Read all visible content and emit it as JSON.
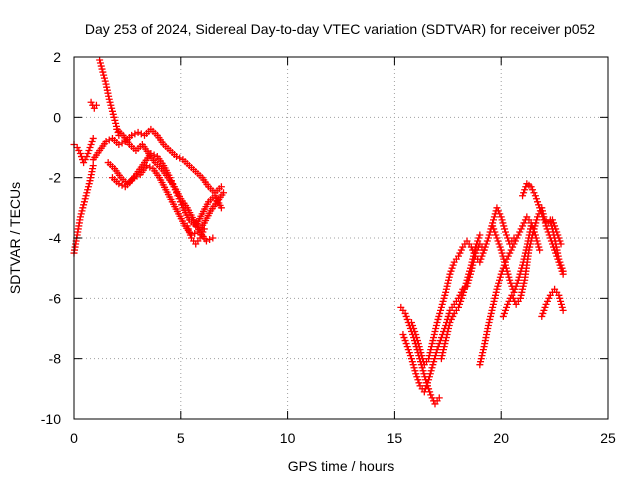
{
  "chart_data": {
    "type": "scatter",
    "title": "Day 253 of 2024, Sidereal Day-to-day VTEC variation (SDTVAR) for receiver p052",
    "xlabel": "GPS time / hours",
    "ylabel": "SDTVAR / TECUs",
    "xlim": [
      0,
      25
    ],
    "ylim": [
      -10,
      2
    ],
    "xticks": [
      0,
      5,
      10,
      15,
      20,
      25
    ],
    "yticks": [
      -10,
      -8,
      -6,
      -4,
      -2,
      0,
      2
    ],
    "grid": true,
    "marker": "+",
    "series": [
      {
        "color": "#ff0000",
        "segments": [
          [
            [
              0.0,
              -4.5
            ],
            [
              0.15,
              -3.9
            ],
            [
              0.3,
              -3.3
            ],
            [
              0.45,
              -2.9
            ],
            [
              0.6,
              -2.5
            ],
            [
              0.75,
              -2.1
            ],
            [
              0.9,
              -1.6
            ]
          ],
          [
            [
              0.0,
              -0.9
            ],
            [
              0.15,
              -1.0
            ],
            [
              0.3,
              -1.2
            ],
            [
              0.45,
              -1.5
            ],
            [
              0.6,
              -1.3
            ],
            [
              0.75,
              -1.0
            ],
            [
              0.9,
              -0.7
            ]
          ],
          [
            [
              0.8,
              0.5
            ],
            [
              0.95,
              0.3
            ],
            [
              1.05,
              0.4
            ]
          ],
          [
            [
              1.2,
              1.9
            ],
            [
              1.35,
              1.5
            ],
            [
              1.5,
              1.1
            ],
            [
              1.65,
              0.6
            ],
            [
              1.8,
              0.2
            ],
            [
              1.95,
              -0.2
            ],
            [
              2.1,
              -0.6
            ]
          ],
          [
            [
              0.9,
              -1.4
            ],
            [
              1.2,
              -1.1
            ],
            [
              1.5,
              -0.8
            ],
            [
              1.8,
              -0.7
            ],
            [
              2.1,
              -0.9
            ],
            [
              2.4,
              -0.8
            ],
            [
              2.7,
              -0.6
            ],
            [
              3.0,
              -0.5
            ],
            [
              3.3,
              -0.6
            ],
            [
              3.6,
              -0.4
            ],
            [
              3.9,
              -0.6
            ],
            [
              4.2,
              -0.9
            ],
            [
              4.5,
              -1.1
            ],
            [
              4.8,
              -1.3
            ],
            [
              5.1,
              -1.4
            ],
            [
              5.4,
              -1.6
            ],
            [
              5.7,
              -1.8
            ],
            [
              6.0,
              -2.0
            ],
            [
              6.3,
              -2.3
            ],
            [
              6.6,
              -2.5
            ],
            [
              6.9,
              -2.3
            ]
          ],
          [
            [
              1.6,
              -1.5
            ],
            [
              1.9,
              -1.7
            ],
            [
              2.2,
              -2.0
            ],
            [
              2.5,
              -2.2
            ],
            [
              2.8,
              -2.0
            ],
            [
              3.1,
              -1.9
            ],
            [
              3.4,
              -1.6
            ],
            [
              3.7,
              -1.7
            ],
            [
              4.0,
              -2.0
            ],
            [
              4.3,
              -2.4
            ],
            [
              4.6,
              -2.8
            ],
            [
              4.9,
              -3.2
            ],
            [
              5.2,
              -3.6
            ],
            [
              5.5,
              -3.9
            ],
            [
              5.8,
              -3.8
            ],
            [
              6.1,
              -3.5
            ],
            [
              6.4,
              -3.1
            ],
            [
              6.7,
              -2.8
            ],
            [
              7.0,
              -2.5
            ]
          ],
          [
            [
              2.0,
              -0.4
            ],
            [
              2.3,
              -0.6
            ],
            [
              2.6,
              -0.9
            ],
            [
              2.9,
              -1.1
            ],
            [
              3.2,
              -0.9
            ],
            [
              3.5,
              -1.2
            ],
            [
              3.8,
              -1.5
            ],
            [
              4.1,
              -1.7
            ],
            [
              4.4,
              -2.0
            ],
            [
              4.7,
              -2.3
            ],
            [
              5.0,
              -2.7
            ],
            [
              5.3,
              -3.0
            ],
            [
              5.6,
              -3.4
            ],
            [
              5.9,
              -3.8
            ],
            [
              6.2,
              -4.1
            ],
            [
              6.5,
              -4.0
            ]
          ],
          [
            [
              1.8,
              -2.0
            ],
            [
              2.1,
              -2.2
            ],
            [
              2.4,
              -2.3
            ],
            [
              2.7,
              -2.1
            ],
            [
              3.0,
              -1.8
            ],
            [
              3.3,
              -1.5
            ],
            [
              3.6,
              -1.2
            ],
            [
              3.9,
              -1.3
            ],
            [
              4.2,
              -1.6
            ],
            [
              4.5,
              -2.0
            ],
            [
              4.8,
              -2.5
            ],
            [
              5.1,
              -3.0
            ],
            [
              5.4,
              -3.4
            ],
            [
              5.7,
              -3.6
            ],
            [
              6.0,
              -3.2
            ],
            [
              6.3,
              -2.8
            ],
            [
              6.6,
              -2.6
            ],
            [
              6.9,
              -3.0
            ]
          ],
          [
            [
              5.3,
              -3.6
            ],
            [
              5.5,
              -4.0
            ],
            [
              5.7,
              -4.2
            ],
            [
              5.9,
              -4.0
            ],
            [
              6.1,
              -3.7
            ]
          ],
          [
            [
              15.3,
              -6.3
            ],
            [
              15.5,
              -6.5
            ],
            [
              15.7,
              -6.9
            ],
            [
              15.9,
              -7.3
            ],
            [
              16.1,
              -7.8
            ],
            [
              16.3,
              -8.3
            ],
            [
              16.5,
              -8.8
            ],
            [
              16.7,
              -9.2
            ],
            [
              16.9,
              -9.5
            ],
            [
              17.1,
              -9.3
            ]
          ],
          [
            [
              15.4,
              -7.2
            ],
            [
              15.6,
              -7.6
            ],
            [
              15.8,
              -8.0
            ],
            [
              16.0,
              -8.5
            ],
            [
              16.2,
              -8.9
            ],
            [
              16.4,
              -9.1
            ],
            [
              16.6,
              -8.7
            ],
            [
              16.8,
              -8.2
            ],
            [
              17.0,
              -7.7
            ],
            [
              17.2,
              -7.3
            ],
            [
              17.4,
              -6.9
            ],
            [
              17.6,
              -6.4
            ],
            [
              17.8,
              -6.2
            ],
            [
              18.0,
              -6.0
            ],
            [
              18.2,
              -5.7
            ],
            [
              18.4,
              -5.6
            ],
            [
              18.6,
              -5.1
            ],
            [
              18.8,
              -4.5
            ],
            [
              19.0,
              -4.2
            ],
            [
              19.2,
              -4.4
            ]
          ],
          [
            [
              15.8,
              -6.8
            ],
            [
              16.0,
              -7.2
            ],
            [
              16.2,
              -7.7
            ],
            [
              16.4,
              -8.2
            ],
            [
              16.6,
              -8.0
            ],
            [
              16.8,
              -7.4
            ],
            [
              17.0,
              -6.8
            ],
            [
              17.2,
              -6.3
            ],
            [
              17.4,
              -5.8
            ],
            [
              17.6,
              -5.2
            ],
            [
              17.8,
              -4.8
            ],
            [
              18.0,
              -4.6
            ],
            [
              18.2,
              -4.3
            ],
            [
              18.4,
              -4.1
            ],
            [
              18.6,
              -4.3
            ],
            [
              18.8,
              -4.6
            ],
            [
              19.0,
              -4.8
            ],
            [
              19.2,
              -4.4
            ],
            [
              19.4,
              -4.0
            ],
            [
              19.6,
              -3.5
            ],
            [
              19.8,
              -3.0
            ],
            [
              20.0,
              -3.3
            ],
            [
              20.2,
              -3.8
            ],
            [
              20.4,
              -4.2
            ],
            [
              20.6,
              -4.0
            ]
          ],
          [
            [
              17.2,
              -8.0
            ],
            [
              17.4,
              -7.4
            ],
            [
              17.6,
              -6.8
            ],
            [
              17.8,
              -6.5
            ],
            [
              18.0,
              -6.3
            ],
            [
              18.2,
              -5.9
            ],
            [
              18.4,
              -5.4
            ],
            [
              18.6,
              -4.9
            ],
            [
              18.8,
              -4.3
            ],
            [
              19.0,
              -3.9
            ]
          ],
          [
            [
              19.0,
              -8.2
            ],
            [
              19.2,
              -7.6
            ],
            [
              19.4,
              -6.9
            ],
            [
              19.6,
              -6.3
            ],
            [
              19.8,
              -5.7
            ],
            [
              20.0,
              -5.2
            ],
            [
              20.2,
              -4.8
            ],
            [
              20.4,
              -4.5
            ],
            [
              20.6,
              -4.2
            ],
            [
              20.8,
              -3.9
            ],
            [
              21.0,
              -3.6
            ],
            [
              21.2,
              -3.3
            ],
            [
              21.4,
              -3.5
            ],
            [
              21.6,
              -3.9
            ],
            [
              21.8,
              -4.4
            ]
          ],
          [
            [
              19.6,
              -3.6
            ],
            [
              19.8,
              -4.0
            ],
            [
              20.0,
              -4.4
            ],
            [
              20.2,
              -4.9
            ],
            [
              20.4,
              -5.4
            ],
            [
              20.6,
              -5.8
            ],
            [
              20.8,
              -5.4
            ],
            [
              21.0,
              -4.9
            ],
            [
              21.2,
              -4.3
            ],
            [
              21.4,
              -3.6
            ]
          ],
          [
            [
              20.1,
              -6.6
            ],
            [
              20.3,
              -6.2
            ],
            [
              20.5,
              -5.9
            ],
            [
              20.7,
              -6.2
            ],
            [
              20.9,
              -6.0
            ],
            [
              21.1,
              -5.4
            ],
            [
              21.3,
              -4.4
            ],
            [
              21.5,
              -3.8
            ],
            [
              21.7,
              -3.3
            ],
            [
              21.9,
              -3.0
            ],
            [
              22.1,
              -3.6
            ],
            [
              22.3,
              -4.0
            ],
            [
              22.5,
              -4.4
            ],
            [
              22.7,
              -4.8
            ],
            [
              22.9,
              -5.2
            ]
          ],
          [
            [
              21.0,
              -2.6
            ],
            [
              21.2,
              -2.2
            ],
            [
              21.4,
              -2.3
            ],
            [
              21.6,
              -2.6
            ],
            [
              21.8,
              -3.0
            ],
            [
              22.0,
              -3.4
            ],
            [
              22.2,
              -3.5
            ],
            [
              22.4,
              -3.4
            ],
            [
              22.6,
              -3.8
            ],
            [
              22.8,
              -4.2
            ]
          ],
          [
            [
              21.9,
              -6.6
            ],
            [
              22.1,
              -6.2
            ],
            [
              22.3,
              -5.9
            ],
            [
              22.5,
              -5.7
            ],
            [
              22.7,
              -5.9
            ],
            [
              22.9,
              -6.4
            ]
          ],
          [
            [
              22.3,
              -3.4
            ],
            [
              22.5,
              -4.0
            ],
            [
              22.7,
              -4.7
            ],
            [
              22.9,
              -5.1
            ]
          ]
        ]
      }
    ]
  }
}
